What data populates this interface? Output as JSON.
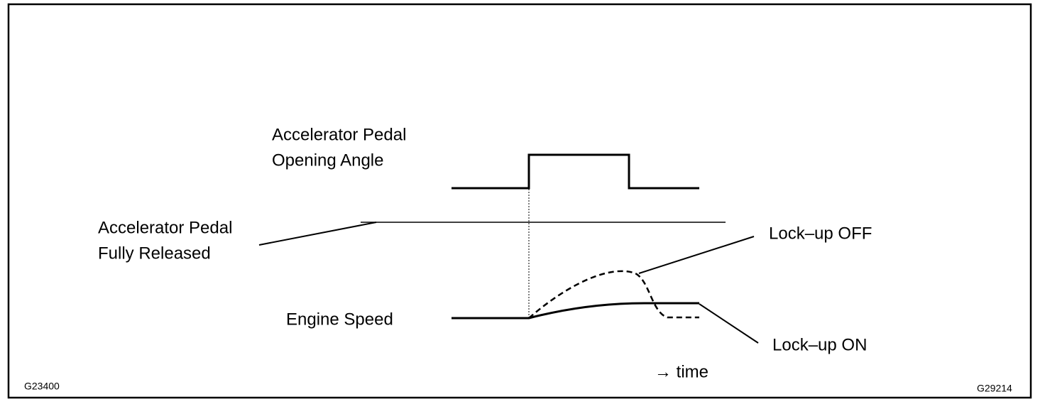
{
  "labels": {
    "pedal_angle": [
      "Accelerator Pedal",
      "Opening Angle"
    ],
    "fully_released": [
      "Accelerator Pedal",
      "Fully Released"
    ],
    "lockup_off": "Lock–up OFF",
    "engine_speed": "Engine Speed",
    "lockup_on": "Lock–up ON",
    "time": "→ time"
  },
  "codes": {
    "left": "G23400",
    "right": "G29214"
  }
}
